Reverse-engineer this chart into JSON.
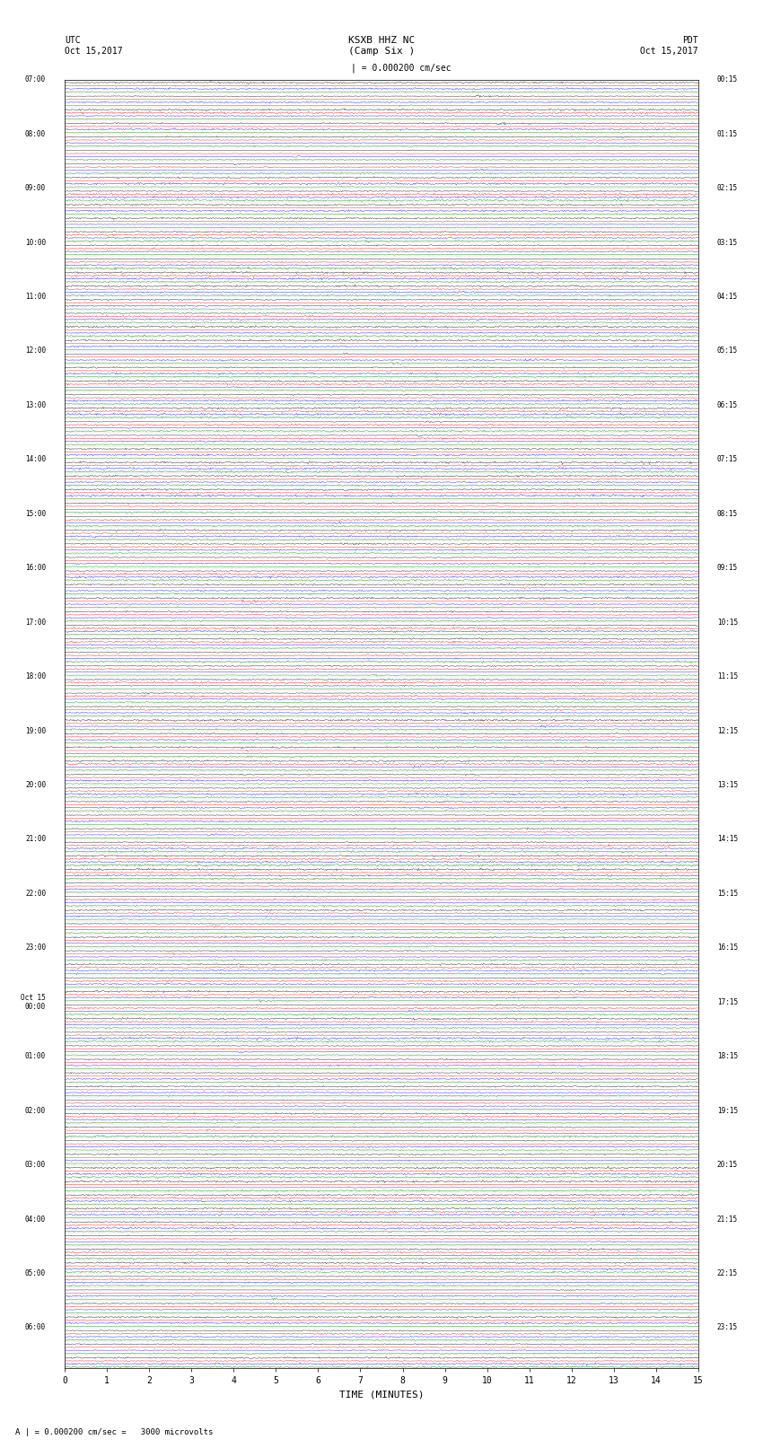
{
  "title_center": "KSXB HHZ NC\n(Camp Six )",
  "title_left": "UTC\nOct 15,2017",
  "title_right": "PDT\nOct 15,2017",
  "scale_label": "| = 0.000200 cm/sec",
  "bottom_label": "A | = 0.000200 cm/sec =   3000 microvolts",
  "xlabel": "TIME (MINUTES)",
  "xticks": [
    0,
    1,
    2,
    3,
    4,
    5,
    6,
    7,
    8,
    9,
    10,
    11,
    12,
    13,
    14,
    15
  ],
  "fig_width": 8.5,
  "fig_height": 16.13,
  "dpi": 100,
  "bg_color": "#ffffff",
  "trace_colors": [
    "#000000",
    "#ff0000",
    "#0000ff",
    "#008000"
  ],
  "left_times": [
    "07:00",
    "",
    "",
    "",
    "08:00",
    "",
    "",
    "",
    "09:00",
    "",
    "",
    "",
    "10:00",
    "",
    "",
    "",
    "11:00",
    "",
    "",
    "",
    "12:00",
    "",
    "",
    "",
    "13:00",
    "",
    "",
    "",
    "14:00",
    "",
    "",
    "",
    "15:00",
    "",
    "",
    "",
    "16:00",
    "",
    "",
    "",
    "17:00",
    "",
    "",
    "",
    "18:00",
    "",
    "",
    "",
    "19:00",
    "",
    "",
    "",
    "20:00",
    "",
    "",
    "",
    "21:00",
    "",
    "",
    "",
    "22:00",
    "",
    "",
    "",
    "23:00",
    "",
    "",
    "",
    "Oct 15\n00:00",
    "",
    "",
    "",
    "01:00",
    "",
    "",
    "",
    "02:00",
    "",
    "",
    "",
    "03:00",
    "",
    "",
    "",
    "04:00",
    "",
    "",
    "",
    "05:00",
    "",
    "",
    "",
    "06:00",
    "",
    ""
  ],
  "right_times": [
    "00:15",
    "",
    "",
    "",
    "01:15",
    "",
    "",
    "",
    "02:15",
    "",
    "",
    "",
    "03:15",
    "",
    "",
    "",
    "04:15",
    "",
    "",
    "",
    "05:15",
    "",
    "",
    "",
    "06:15",
    "",
    "",
    "",
    "07:15",
    "",
    "",
    "",
    "08:15",
    "",
    "",
    "",
    "09:15",
    "",
    "",
    "",
    "10:15",
    "",
    "",
    "",
    "11:15",
    "",
    "",
    "",
    "12:15",
    "",
    "",
    "",
    "13:15",
    "",
    "",
    "",
    "14:15",
    "",
    "",
    "",
    "15:15",
    "",
    "",
    "",
    "16:15",
    "",
    "",
    "",
    "17:15",
    "",
    "",
    "",
    "18:15",
    "",
    "",
    "",
    "19:15",
    "",
    "",
    "",
    "20:15",
    "",
    "",
    "",
    "21:15",
    "",
    "",
    "",
    "22:15",
    "",
    "",
    "",
    "23:15",
    "",
    ""
  ],
  "n_rows": 95,
  "traces_per_row": 4,
  "noise_seed": 42
}
